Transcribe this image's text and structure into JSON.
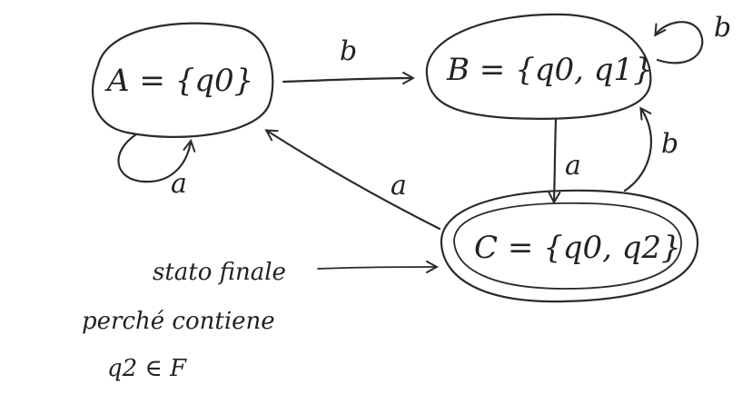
{
  "states": {
    "A": {
      "label": "A = {q0}"
    },
    "B": {
      "label": "B = {q0, q1}"
    },
    "C": {
      "label": "C = {q0, q2}",
      "final": true
    }
  },
  "transitions": {
    "A_self": "a",
    "A_to_B": "b",
    "B_self": "b",
    "B_to_C": "a",
    "C_to_B": "b",
    "C_to_A": "a"
  },
  "note": {
    "line1": "stato finale",
    "line2": "perché contiene",
    "line3": "q2 ∈ F"
  },
  "colors": {
    "ink": "#2a2a2a",
    "background": "#ffffff"
  }
}
